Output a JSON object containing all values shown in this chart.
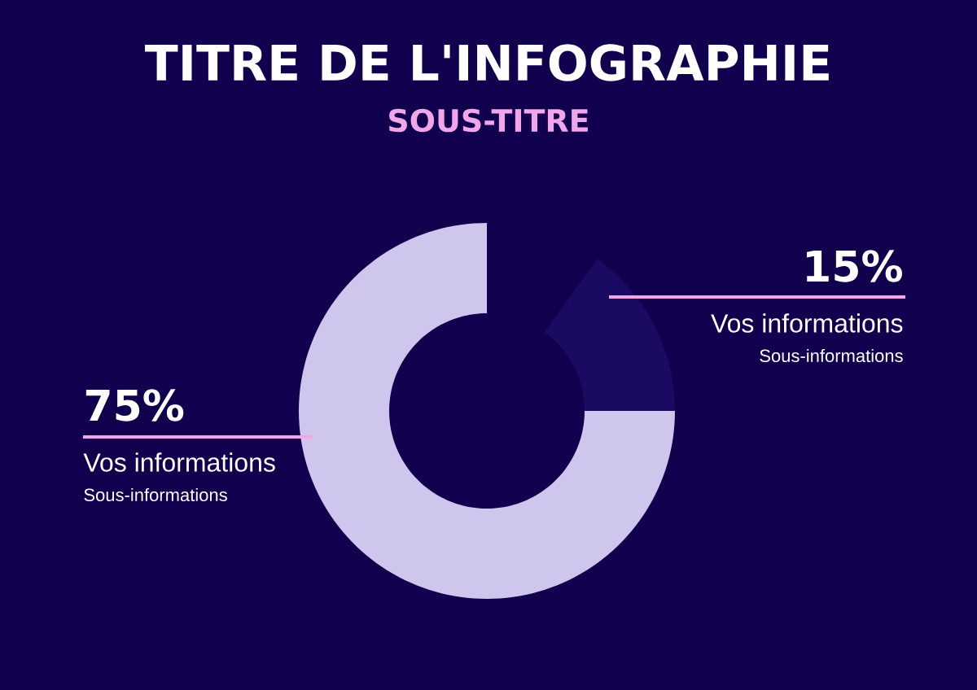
{
  "chart_data": {
    "type": "donut",
    "title": "TITRE DE L'INFOGRAPHIE",
    "subtitle": "SOUS-TITRE",
    "categories": [
      "Vos informations",
      "Vos informations"
    ],
    "values": [
      75,
      15
    ],
    "value_labels": [
      "75%",
      "15%"
    ],
    "colors": [
      "#cfc6ee",
      "#1a0a62"
    ],
    "annotations": [
      "Sous-informations",
      "Sous-informations"
    ]
  }
}
